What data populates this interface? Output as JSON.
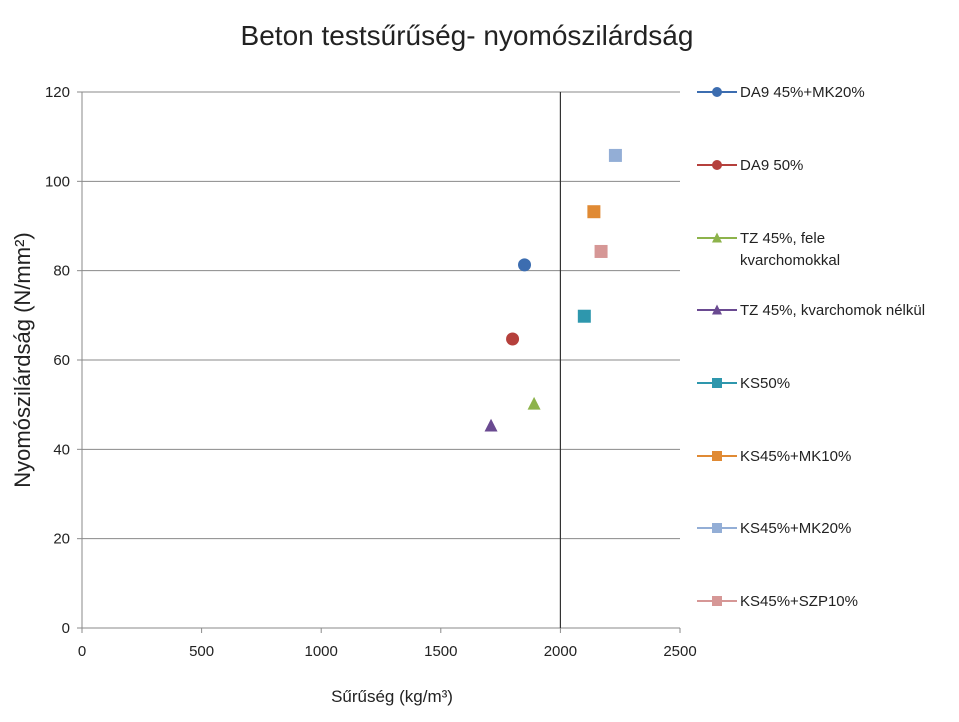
{
  "chart_data": {
    "type": "scatter",
    "title": "Beton testsűrűség- nyomószilárdság",
    "xlabel": "Sűrűség (kg/m³)",
    "ylabel": "Nyomószilárdság (N/mm²)",
    "xlim": [
      0,
      2500
    ],
    "ylim": [
      0,
      120
    ],
    "xticks": [
      "0",
      "500",
      "1000",
      "1500",
      "2000",
      "2500"
    ],
    "yticks": [
      "0",
      "20",
      "40",
      "60",
      "80",
      "100",
      "120"
    ],
    "grid": "horizontal",
    "reference_line_x": 2000,
    "legend_position": "right",
    "series": [
      {
        "name": "DA9 45%+MK20%",
        "marker": "circle",
        "color": "#3c6db0",
        "x": 1850,
        "y": 81.3
      },
      {
        "name": "DA9 50%",
        "marker": "circle",
        "color": "#b5403c",
        "x": 1800,
        "y": 64.7
      },
      {
        "name": "TZ 45%, fele kvarchomokkal",
        "marker": "triangle",
        "color": "#8db34b",
        "x": 1890,
        "y": 50.2
      },
      {
        "name": "TZ 45%, kvarchomok nélkül",
        "marker": "triangle",
        "color": "#6a4a91",
        "x": 1710,
        "y": 45.3
      },
      {
        "name": "KS50%",
        "marker": "square",
        "color": "#2e97ad",
        "x": 2100,
        "y": 69.8
      },
      {
        "name": "KS45%+MK10%",
        "marker": "square",
        "color": "#e08a34",
        "x": 2140,
        "y": 93.2
      },
      {
        "name": "KS45%+MK20%",
        "marker": "square",
        "color": "#93aed6",
        "x": 2230,
        "y": 105.8
      },
      {
        "name": "KS45%+SZP10%",
        "marker": "square",
        "color": "#d69796",
        "x": 2170,
        "y": 84.3
      }
    ]
  }
}
